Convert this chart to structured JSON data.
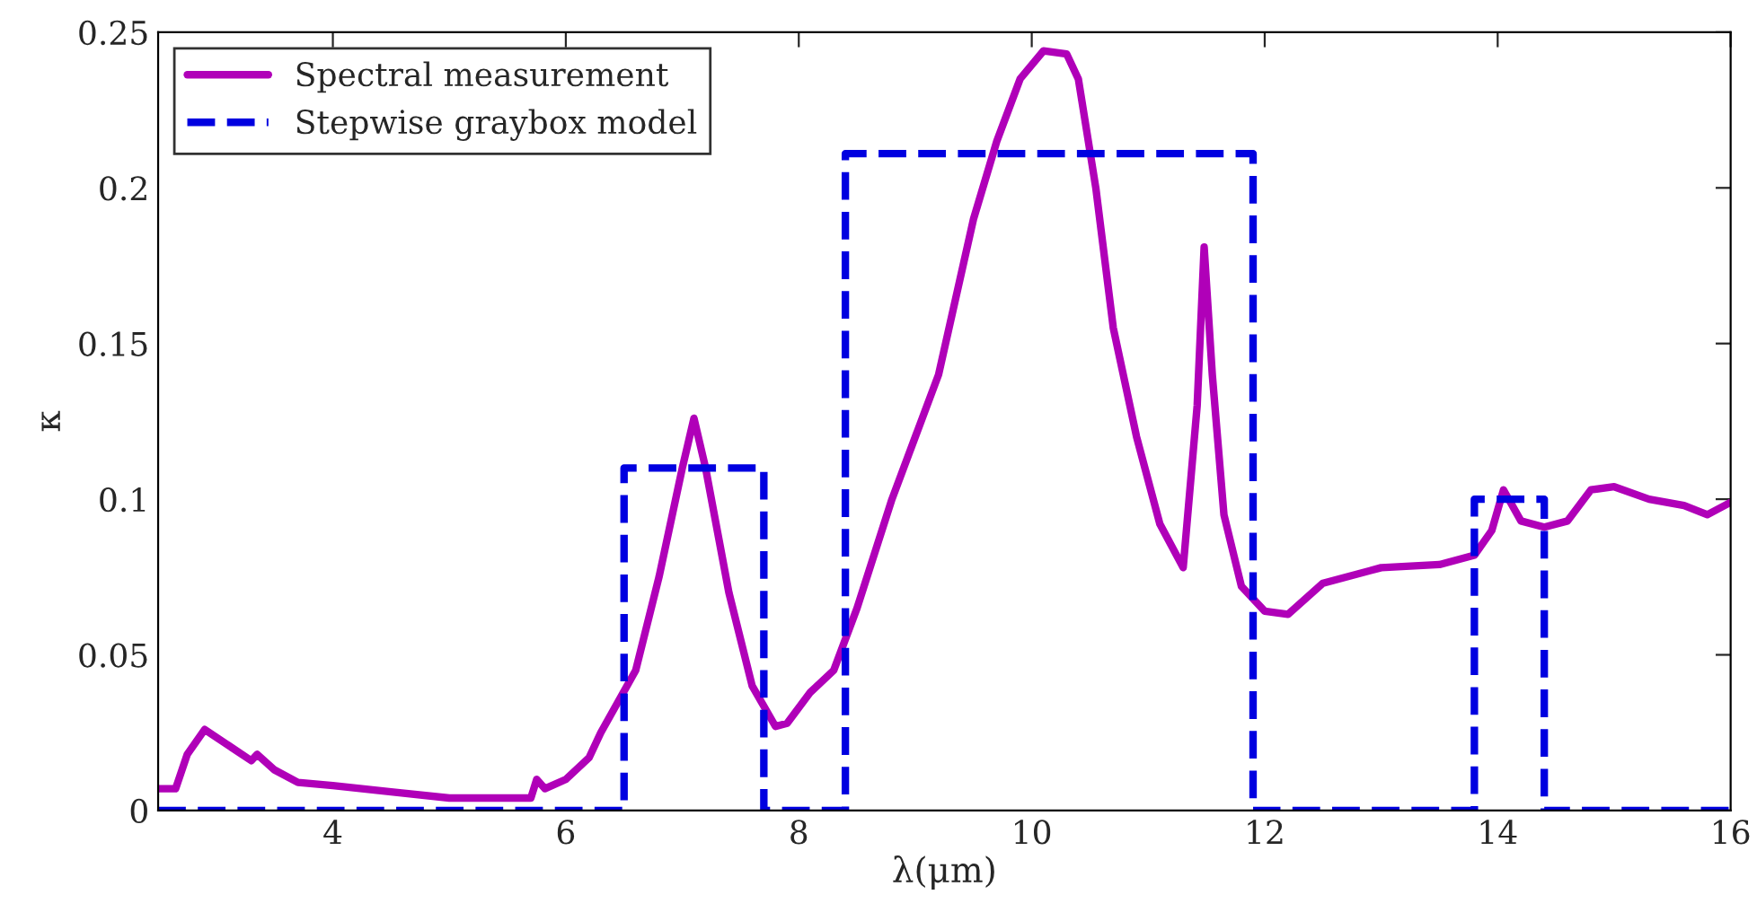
{
  "chart_data": {
    "type": "line",
    "xlabel": "λ(μm)",
    "ylabel": "κ",
    "xlim": [
      2.5,
      16
    ],
    "xticks": [
      4,
      6,
      8,
      10,
      12,
      14,
      16
    ],
    "ylim": [
      0,
      0.25
    ],
    "yticks": [
      0,
      0.05,
      0.1,
      0.15,
      0.2,
      0.25
    ],
    "grid": false,
    "legend": "top left",
    "series": [
      {
        "name": "Spectral measurement",
        "line_style": "solid",
        "color": "#b000b8",
        "x": [
          2.5,
          2.65,
          2.75,
          2.9,
          3.1,
          3.3,
          3.35,
          3.5,
          3.7,
          4.0,
          4.5,
          5.0,
          5.5,
          5.7,
          5.75,
          5.82,
          6.0,
          6.2,
          6.3,
          6.45,
          6.6,
          6.8,
          7.0,
          7.1,
          7.2,
          7.4,
          7.6,
          7.8,
          7.9,
          8.1,
          8.3,
          8.5,
          8.8,
          9.2,
          9.5,
          9.7,
          9.9,
          10.1,
          10.3,
          10.4,
          10.55,
          10.7,
          10.9,
          11.1,
          11.3,
          11.42,
          11.48,
          11.55,
          11.65,
          11.8,
          12.0,
          12.2,
          12.5,
          13.0,
          13.5,
          13.8,
          13.95,
          14.05,
          14.2,
          14.4,
          14.6,
          14.8,
          15.0,
          15.3,
          15.6,
          15.8,
          16.0
        ],
        "values": [
          0.007,
          0.007,
          0.018,
          0.026,
          0.021,
          0.016,
          0.018,
          0.013,
          0.009,
          0.008,
          0.006,
          0.004,
          0.004,
          0.004,
          0.01,
          0.007,
          0.01,
          0.017,
          0.025,
          0.035,
          0.045,
          0.075,
          0.11,
          0.126,
          0.11,
          0.07,
          0.04,
          0.027,
          0.028,
          0.038,
          0.045,
          0.065,
          0.1,
          0.14,
          0.19,
          0.215,
          0.235,
          0.244,
          0.243,
          0.235,
          0.2,
          0.155,
          0.12,
          0.092,
          0.078,
          0.13,
          0.181,
          0.14,
          0.095,
          0.072,
          0.064,
          0.063,
          0.073,
          0.078,
          0.079,
          0.082,
          0.09,
          0.103,
          0.093,
          0.091,
          0.093,
          0.103,
          0.104,
          0.1,
          0.098,
          0.095,
          0.099
        ]
      },
      {
        "name": "Stepwise graybox model",
        "type": "step",
        "line_style": "dashed",
        "color": "#0000e0",
        "x": [
          2.5,
          6.5,
          7.7,
          8.4,
          11.9,
          13.8,
          14.4,
          16
        ],
        "values": [
          0,
          0.11,
          0,
          0.211,
          0,
          0.1,
          0,
          0
        ]
      }
    ]
  }
}
